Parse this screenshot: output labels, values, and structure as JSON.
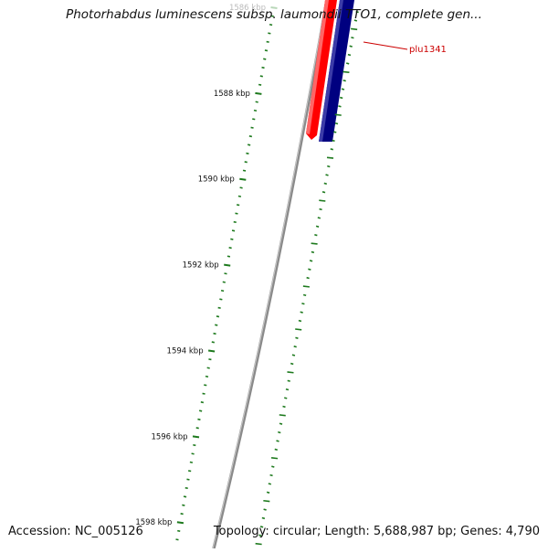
{
  "map": {
    "title": "Photorhabdus luminescens subsp. laumondii TTO1, complete gen...",
    "accession": "Accession: NC_005126",
    "summary": "Topology: circular; Length: 5,688,987 bp; Genes: 4,790"
  },
  "ticks": [
    {
      "label": "1586 kbp",
      "faded": true
    },
    {
      "label": "1588 kbp",
      "faded": false
    },
    {
      "label": "1590 kbp",
      "faded": false
    },
    {
      "label": "1592 kbp",
      "faded": false
    },
    {
      "label": "1594 kbp",
      "faded": false
    },
    {
      "label": "1596 kbp",
      "faded": false
    },
    {
      "label": "1598 kbp",
      "faded": false
    }
  ],
  "features": [
    {
      "label": "plu1341",
      "strand": "reverse",
      "color": "#d40000"
    }
  ],
  "colors": {
    "backbone": "#808080",
    "tick": "#1e7a1e",
    "forward_gene": "#ff0000",
    "reverse_gene": "#000080",
    "feature_label": "#cc0000"
  }
}
